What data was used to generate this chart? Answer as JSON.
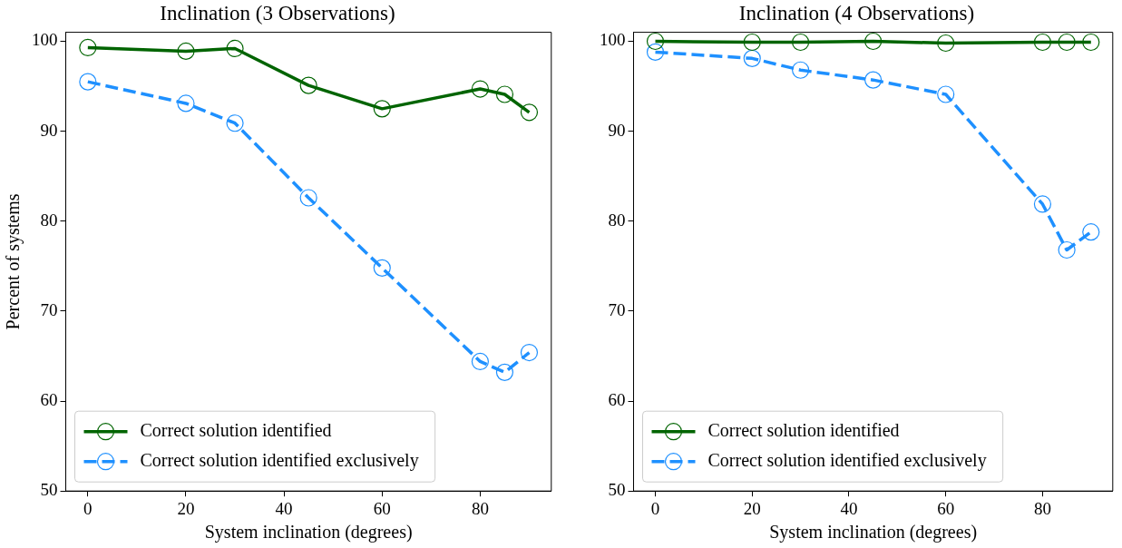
{
  "chart_data": [
    {
      "type": "line",
      "title": "Inclination (3 Observations)",
      "xlabel": "System inclination (degrees)",
      "ylabel": "Percent of systems",
      "x": [
        0,
        20,
        30,
        45,
        60,
        80,
        85,
        90
      ],
      "series": [
        {
          "name": "Correct solution identified",
          "color": "#006400",
          "line_style": "solid",
          "values": [
            99.3,
            98.9,
            99.2,
            95.1,
            92.5,
            94.7,
            94.1,
            92.1
          ]
        },
        {
          "name": "Correct solution identified exclusively",
          "color": "#1e90ff",
          "line_style": "dashed",
          "values": [
            95.5,
            93.1,
            90.9,
            82.6,
            74.8,
            64.4,
            63.2,
            65.4
          ]
        }
      ],
      "xlim": [
        -4.5,
        94.5
      ],
      "ylim": [
        50,
        101
      ],
      "xticks": [
        0,
        20,
        40,
        60,
        80
      ],
      "yticks": [
        50,
        60,
        70,
        80,
        90,
        100
      ],
      "marker": "circle",
      "grid": false,
      "legend": "bottom left"
    },
    {
      "type": "line",
      "title": "Inclination (4 Observations)",
      "xlabel": "System inclination (degrees)",
      "x": [
        0,
        20,
        30,
        45,
        60,
        80,
        85,
        90
      ],
      "series": [
        {
          "name": "Correct solution identified",
          "color": "#006400",
          "line_style": "solid",
          "values": [
            100.0,
            99.9,
            99.9,
            100.0,
            99.8,
            99.9,
            99.9,
            99.9
          ]
        },
        {
          "name": "Correct solution identified exclusively",
          "color": "#1e90ff",
          "line_style": "dashed",
          "values": [
            98.8,
            98.1,
            96.8,
            95.7,
            94.1,
            81.9,
            76.8,
            78.8
          ]
        }
      ],
      "xlim": [
        -4.5,
        94.5
      ],
      "ylim": [
        50,
        101
      ],
      "xticks": [
        0,
        20,
        40,
        60,
        80
      ],
      "yticks": [
        50,
        60,
        70,
        80,
        90,
        100
      ],
      "marker": "circle",
      "grid": false,
      "legend": "bottom left"
    }
  ]
}
